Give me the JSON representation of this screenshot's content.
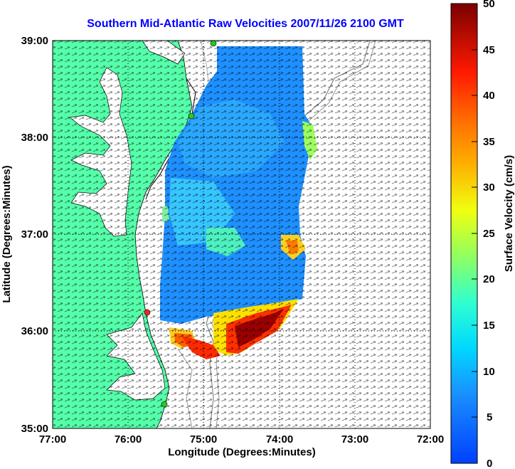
{
  "title": "Southern Mid-Atlantic Raw Velocities 2007/11/26 2100 GMT",
  "map": {
    "xlabel": "Longitude (Degrees:Minutes)",
    "ylabel": "Latitude (Degrees:Minutes)",
    "x_ticks": [
      "77:00",
      "76:00",
      "75:00",
      "74:00",
      "73:00",
      "72:00"
    ],
    "y_ticks": [
      "39:00",
      "38:00",
      "37:00",
      "36:00",
      "35:00"
    ],
    "land_color": "#55ffaa",
    "sea_color": "#ffffff",
    "stations": [
      {
        "color": "#22cc22"
      },
      {
        "color": "#22cc22"
      },
      {
        "color": "#ff2222"
      },
      {
        "color": "#22cc22"
      }
    ]
  },
  "colorbar": {
    "label": "Surface Velocity (cm/s)",
    "ticks": [
      "50",
      "45",
      "40",
      "35",
      "30",
      "25",
      "20",
      "15",
      "10",
      "5",
      "0"
    ],
    "range": [
      0,
      50
    ]
  }
}
